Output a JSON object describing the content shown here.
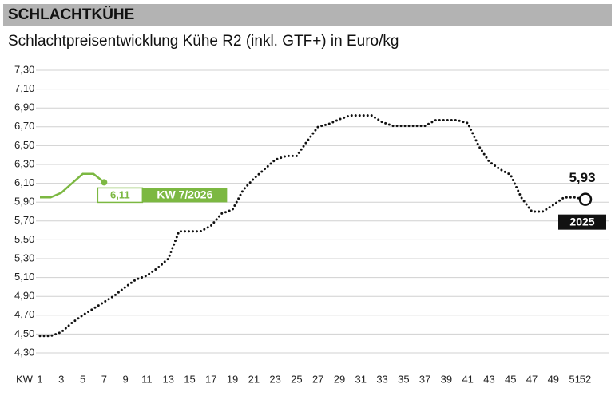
{
  "chart_data": {
    "type": "line",
    "header": "SCHLACHTKÜHE",
    "title": "Schlachtpreisentwicklung Kühe R2 (inkl. GTF+) in Euro/kg",
    "x_label": "KW",
    "x": [
      1,
      2,
      3,
      4,
      5,
      6,
      7,
      8,
      9,
      10,
      11,
      12,
      13,
      14,
      15,
      16,
      17,
      18,
      19,
      20,
      21,
      22,
      23,
      24,
      25,
      26,
      27,
      28,
      29,
      30,
      31,
      32,
      33,
      34,
      35,
      36,
      37,
      38,
      39,
      40,
      41,
      42,
      43,
      44,
      45,
      46,
      47,
      48,
      49,
      50,
      51,
      52
    ],
    "xlim": [
      1,
      52
    ],
    "xticks": [
      1,
      3,
      5,
      7,
      9,
      11,
      13,
      15,
      17,
      19,
      21,
      23,
      25,
      27,
      29,
      31,
      33,
      35,
      37,
      39,
      41,
      43,
      45,
      47,
      49,
      51,
      52
    ],
    "ylim": [
      4.3,
      7.3
    ],
    "yticks": [
      {
        "value": 4.3,
        "label": "4,30"
      },
      {
        "value": 4.5,
        "label": "4,50"
      },
      {
        "value": 4.7,
        "label": "4,70"
      },
      {
        "value": 4.9,
        "label": "4,90"
      },
      {
        "value": 5.1,
        "label": "5,10"
      },
      {
        "value": 5.3,
        "label": "5,30"
      },
      {
        "value": 5.5,
        "label": "5,50"
      },
      {
        "value": 5.7,
        "label": "5,70"
      },
      {
        "value": 5.9,
        "label": "5,90"
      },
      {
        "value": 6.1,
        "label": "6,10"
      },
      {
        "value": 6.3,
        "label": "6,30"
      },
      {
        "value": 6.5,
        "label": "6,50"
      },
      {
        "value": 6.7,
        "label": "6,70"
      },
      {
        "value": 6.9,
        "label": "6,90"
      },
      {
        "value": 7.1,
        "label": "7,10"
      },
      {
        "value": 7.3,
        "label": "7,30"
      }
    ],
    "grid": true,
    "series": [
      {
        "name": "2025",
        "color": "#111111",
        "style": "dotted",
        "values": [
          4.48,
          4.48,
          4.52,
          4.62,
          4.7,
          4.77,
          4.84,
          4.91,
          5.0,
          5.08,
          5.12,
          5.2,
          5.3,
          5.59,
          5.59,
          5.59,
          5.65,
          5.78,
          5.82,
          6.03,
          6.15,
          6.25,
          6.35,
          6.39,
          6.39,
          6.55,
          6.7,
          6.73,
          6.78,
          6.82,
          6.82,
          6.82,
          6.75,
          6.71,
          6.71,
          6.71,
          6.71,
          6.77,
          6.77,
          6.77,
          6.74,
          6.5,
          6.33,
          6.25,
          6.19,
          5.95,
          5.8,
          5.8,
          5.87,
          5.95,
          5.95,
          5.93
        ],
        "value_labels": [
          null,
          null,
          null,
          null,
          null,
          null,
          null,
          null,
          null,
          null,
          null,
          null,
          null,
          null,
          null,
          null,
          null,
          null,
          null,
          null,
          null,
          null,
          null,
          null,
          null,
          null,
          null,
          null,
          null,
          null,
          null,
          null,
          null,
          null,
          null,
          null,
          null,
          null,
          null,
          null,
          null,
          null,
          null,
          null,
          null,
          null,
          null,
          null,
          null,
          null,
          null,
          "5,93"
        ]
      },
      {
        "name": "KW 7/2026",
        "color": "#7cb842",
        "style": "solid",
        "values": [
          5.95,
          5.95,
          6.0,
          6.1,
          6.2,
          6.2,
          6.11,
          null,
          null,
          null,
          null,
          null,
          null,
          null,
          null,
          null,
          null,
          null,
          null,
          null,
          null,
          null,
          null,
          null,
          null,
          null,
          null,
          null,
          null,
          null,
          null,
          null,
          null,
          null,
          null,
          null,
          null,
          null,
          null,
          null,
          null,
          null,
          null,
          null,
          null,
          null,
          null,
          null,
          null,
          null,
          null,
          null
        ],
        "value_labels": [
          null,
          null,
          null,
          null,
          null,
          null,
          "6,11",
          null,
          null,
          null,
          null,
          null,
          null,
          null,
          null,
          null,
          null,
          null,
          null,
          null,
          null,
          null,
          null,
          null,
          null,
          null,
          null,
          null,
          null,
          null,
          null,
          null,
          null,
          null,
          null,
          null,
          null,
          null,
          null,
          null,
          null,
          null,
          null,
          null,
          null,
          null,
          null,
          null,
          null,
          null,
          null,
          null
        ]
      }
    ]
  }
}
